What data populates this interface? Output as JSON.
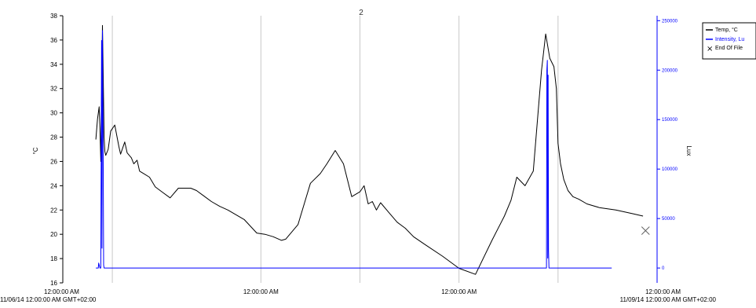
{
  "chart_data": {
    "type": "line",
    "title": "2",
    "ylabel": "°C",
    "y2label": "Lux",
    "ylim": [
      16,
      38
    ],
    "y2lim": [
      -15000,
      255000
    ],
    "yticks": [
      16,
      18,
      20,
      22,
      24,
      26,
      28,
      30,
      32,
      34,
      36,
      38
    ],
    "y2ticks": [
      0,
      50000,
      100000,
      150000,
      200000,
      250000
    ],
    "xlim": [
      0,
      72
    ],
    "xticks": [
      {
        "x": 0,
        "label": "12:00:00 AM",
        "sublabel": "11/06/14 12:00:00 AM GMT+02:00"
      },
      {
        "x": 24,
        "label": "12:00:00 AM",
        "sublabel": ""
      },
      {
        "x": 48,
        "label": "12:00:00 AM",
        "sublabel": ""
      },
      {
        "x": 72,
        "label": "12:00:00 AM",
        "sublabel": "11/09/14 12:00:00 AM GMT+02:00"
      }
    ],
    "gridlines_x": [
      6,
      24,
      36,
      48,
      60
    ],
    "grid": true,
    "legend_position": "top-right",
    "legend": [
      {
        "label": "Temp, °C",
        "color": "#000000",
        "marker": "line"
      },
      {
        "label": "Intensity, Lu",
        "color": "#0000ff",
        "marker": "line"
      },
      {
        "label": "End Of File",
        "color": "#000000",
        "marker": "x"
      }
    ],
    "series": [
      {
        "name": "Temp, °C",
        "axis": "left",
        "color": "#000000",
        "x": [
          4.0,
          4.2,
          4.4,
          4.5,
          4.6,
          4.8,
          4.9,
          5.0,
          5.1,
          5.2,
          5.5,
          5.8,
          6.3,
          6.8,
          7.0,
          7.5,
          7.8,
          8.3,
          8.6,
          9.0,
          9.3,
          9.8,
          10.5,
          11.2,
          12.0,
          13.0,
          14.0,
          15.5,
          16.2,
          17.0,
          18.0,
          19.0,
          20.0,
          22.0,
          23.5,
          24.5,
          25.5,
          26.5,
          27.0,
          28.5,
          30.0,
          31.2,
          32.0,
          33.0,
          34.0,
          35.0,
          36.0,
          36.5,
          37.0,
          37.5,
          38.0,
          38.5,
          39.5,
          40.5,
          41.5,
          42.5,
          44.0,
          46.0,
          48.0,
          50.0,
          52.0,
          53.5,
          54.3,
          55.0,
          56.0,
          57.0,
          58.0,
          58.5,
          59.0,
          59.5,
          59.8,
          60.0,
          60.3,
          60.7,
          61.2,
          61.8,
          62.5,
          63.5,
          65.0,
          67.0,
          69.0,
          70.3
        ],
        "y": [
          27.8,
          29.5,
          30.5,
          28.8,
          26.0,
          37.2,
          33.0,
          28.0,
          26.8,
          26.5,
          27.0,
          28.5,
          29.0,
          27.2,
          26.6,
          27.6,
          26.7,
          26.3,
          25.8,
          26.1,
          25.2,
          25.0,
          24.7,
          23.9,
          23.5,
          23.0,
          23.8,
          23.8,
          23.6,
          23.2,
          22.7,
          22.3,
          22.0,
          21.2,
          20.1,
          20.0,
          19.8,
          19.5,
          19.6,
          20.8,
          24.2,
          25.0,
          25.8,
          26.9,
          25.8,
          23.1,
          23.5,
          24.0,
          22.5,
          22.7,
          22.0,
          22.6,
          21.8,
          21.0,
          20.5,
          19.8,
          19.1,
          18.2,
          17.2,
          16.7,
          19.5,
          21.5,
          22.8,
          24.7,
          24.0,
          25.2,
          33.5,
          36.5,
          34.5,
          33.8,
          32.0,
          27.5,
          25.8,
          24.5,
          23.6,
          23.1,
          22.9,
          22.5,
          22.2,
          22.0,
          21.7,
          21.5
        ]
      },
      {
        "name": "Intensity, Lu",
        "axis": "right",
        "color": "#0000ff",
        "x": [
          4.0,
          4.3,
          4.35,
          4.5,
          4.6,
          4.7,
          4.75,
          4.8,
          4.9,
          4.95,
          5.0,
          5.1,
          58.5,
          58.6,
          58.65,
          58.7,
          58.75,
          58.8,
          58.85,
          58.9,
          58.95,
          59.0,
          66.5
        ],
        "y": [
          0,
          0,
          5000,
          0,
          0,
          230000,
          20000,
          240000,
          100000,
          3000,
          0,
          0,
          0,
          0,
          200000,
          210000,
          10000,
          195000,
          18000,
          0,
          0,
          0,
          0
        ]
      }
    ],
    "annotations": [
      {
        "type": "end-of-file-marker",
        "x": 70.6,
        "y": 20.3,
        "axis": "left"
      }
    ]
  }
}
